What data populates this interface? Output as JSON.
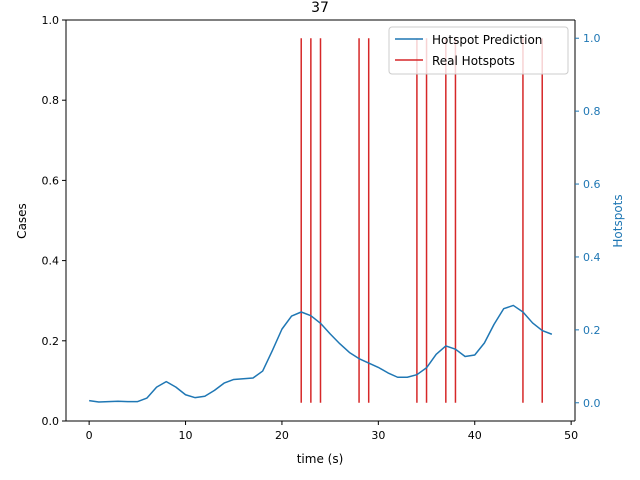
{
  "chart_data": {
    "type": "line",
    "title": "37",
    "xlabel": "time (s)",
    "ylabel": "Cases",
    "y2label": "Hotspots",
    "xlim": [
      -2.4,
      50.4
    ],
    "ylim": [
      0,
      1
    ],
    "y2lim": [
      -0.05,
      1.05
    ],
    "x_ticks": [
      0,
      10,
      20,
      30,
      40,
      50
    ],
    "x_tick_labels": [
      "0",
      "10",
      "20",
      "30",
      "40",
      "50"
    ],
    "y_ticks": [
      0,
      0.2,
      0.4,
      0.6,
      0.8,
      1.0
    ],
    "y_tick_labels": [
      "0.0",
      "0.2",
      "0.4",
      "0.6",
      "0.8",
      "1.0"
    ],
    "y2_ticks": [
      0,
      0.2,
      0.4,
      0.6,
      0.8,
      1.0
    ],
    "y2_tick_labels": [
      "0.0",
      "0.2",
      "0.4",
      "0.6",
      "0.8",
      "1.0"
    ],
    "legend_position": "top-right",
    "colors": {
      "prediction": "#1f77b4",
      "hotspots": "#d62728",
      "axis2": "#1f77b4"
    },
    "series": [
      {
        "name": "Hotspot Prediction",
        "axis": "right",
        "x": [
          0,
          1,
          2,
          3,
          4,
          5,
          6,
          7,
          8,
          9,
          10,
          11,
          12,
          13,
          14,
          15,
          16,
          17,
          18,
          19,
          20,
          21,
          22,
          23,
          24,
          25,
          26,
          27,
          28,
          29,
          30,
          31,
          32,
          33,
          34,
          35,
          36,
          37,
          38,
          39,
          40,
          41,
          42,
          43,
          44,
          45,
          46,
          47,
          48
        ],
        "y": [
          0.006,
          0.002,
          0.003,
          0.004,
          0.003,
          0.003,
          0.013,
          0.043,
          0.058,
          0.043,
          0.022,
          0.014,
          0.018,
          0.034,
          0.054,
          0.064,
          0.066,
          0.068,
          0.087,
          0.143,
          0.202,
          0.238,
          0.249,
          0.239,
          0.218,
          0.189,
          0.162,
          0.138,
          0.121,
          0.109,
          0.097,
          0.082,
          0.07,
          0.07,
          0.077,
          0.096,
          0.133,
          0.156,
          0.147,
          0.127,
          0.131,
          0.164,
          0.215,
          0.258,
          0.267,
          0.249,
          0.219,
          0.198,
          0.188
        ]
      },
      {
        "name": "Real Hotspots",
        "axis": "right",
        "type": "vlines",
        "x": [
          22,
          23,
          24,
          28,
          29,
          34,
          35,
          37,
          38,
          45,
          47
        ],
        "ymin": 0,
        "ymax": 1
      }
    ]
  }
}
